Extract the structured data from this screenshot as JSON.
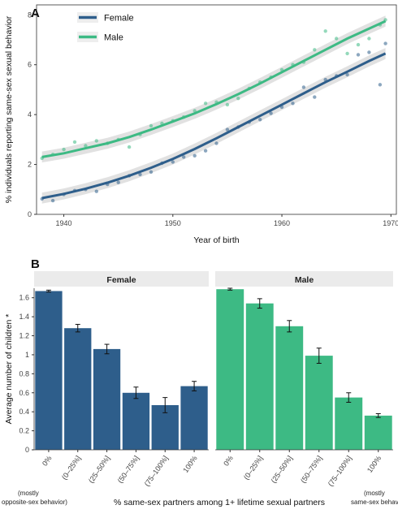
{
  "colors": {
    "female": "#2e5e8b",
    "male": "#3dba84",
    "band": "#d9d9d9",
    "strip": "#ebebeb"
  },
  "panel_a": {
    "label": "A",
    "legend": [
      "Female",
      "Male"
    ],
    "ylabel": "% individuals reporting same-sex sexual behavior",
    "xlabel": "Year of birth",
    "xticks": [
      "1940",
      "1950",
      "1960",
      "1970"
    ],
    "yticks": [
      "0",
      "2",
      "4",
      "6",
      "8"
    ]
  },
  "panel_b": {
    "label": "B",
    "facets": [
      "Female",
      "Male"
    ],
    "ylabel": "Average number of children *",
    "xlabel": "% same-sex partners among 1+ lifetime sexual partners",
    "note_left": [
      "(mostly",
      "opposite-sex behavior)"
    ],
    "note_right": [
      "(mostly",
      "same-sex behavior)"
    ],
    "yticks": [
      "0",
      "0.2",
      "0.4",
      "0.6",
      "0.8",
      "1",
      "1.2",
      "1.4",
      "1.6"
    ],
    "categories": [
      "0%",
      "(0–25%]",
      "(25–50%]",
      "(50–75%]",
      "(75–100%]",
      "100%"
    ]
  },
  "chart_data": [
    {
      "type": "scatter",
      "xlim": [
        1937.5,
        1970.5
      ],
      "ylim": [
        0,
        8.4
      ],
      "xlabel": "Year of birth",
      "ylabel": "% individuals reporting same-sex sexual behavior",
      "legend_position": "top-left",
      "grid": false,
      "series": [
        {
          "name": "Female",
          "points": [
            [
              1938,
              0.62
            ],
            [
              1939,
              0.55
            ],
            [
              1940,
              0.8
            ],
            [
              1941,
              0.95
            ],
            [
              1942,
              1.0
            ],
            [
              1943,
              0.92
            ],
            [
              1944,
              1.2
            ],
            [
              1945,
              1.28
            ],
            [
              1946,
              1.55
            ],
            [
              1947,
              1.6
            ],
            [
              1948,
              1.7
            ],
            [
              1949,
              2.05
            ],
            [
              1950,
              2.1
            ],
            [
              1951,
              2.3
            ],
            [
              1952,
              2.35
            ],
            [
              1953,
              2.55
            ],
            [
              1954,
              2.85
            ],
            [
              1955,
              3.4
            ],
            [
              1956,
              3.5
            ],
            [
              1957,
              3.7
            ],
            [
              1958,
              3.8
            ],
            [
              1959,
              4.05
            ],
            [
              1960,
              4.3
            ],
            [
              1961,
              4.45
            ],
            [
              1962,
              5.1
            ],
            [
              1963,
              4.7
            ],
            [
              1964,
              5.4
            ],
            [
              1965,
              5.55
            ],
            [
              1966,
              5.6
            ],
            [
              1967,
              6.4
            ],
            [
              1968,
              6.5
            ],
            [
              1969,
              5.2
            ],
            [
              1969.5,
              6.85
            ]
          ],
          "fit": [
            [
              1938,
              0.65
            ],
            [
              1940,
              0.82
            ],
            [
              1942,
              1.03
            ],
            [
              1944,
              1.27
            ],
            [
              1946,
              1.55
            ],
            [
              1948,
              1.87
            ],
            [
              1950,
              2.22
            ],
            [
              1952,
              2.62
            ],
            [
              1954,
              3.05
            ],
            [
              1956,
              3.5
            ],
            [
              1958,
              3.95
            ],
            [
              1960,
              4.4
            ],
            [
              1962,
              4.85
            ],
            [
              1964,
              5.3
            ],
            [
              1966,
              5.72
            ],
            [
              1968,
              6.15
            ],
            [
              1969.5,
              6.45
            ]
          ]
        },
        {
          "name": "Male",
          "points": [
            [
              1938,
              2.25
            ],
            [
              1939,
              2.4
            ],
            [
              1940,
              2.6
            ],
            [
              1941,
              2.9
            ],
            [
              1942,
              2.75
            ],
            [
              1943,
              2.95
            ],
            [
              1944,
              2.85
            ],
            [
              1945,
              3.0
            ],
            [
              1946,
              2.7
            ],
            [
              1947,
              3.2
            ],
            [
              1948,
              3.55
            ],
            [
              1949,
              3.65
            ],
            [
              1950,
              3.75
            ],
            [
              1951,
              3.9
            ],
            [
              1952,
              4.15
            ],
            [
              1953,
              4.45
            ],
            [
              1954,
              4.5
            ],
            [
              1955,
              4.4
            ],
            [
              1956,
              4.65
            ],
            [
              1957,
              5.05
            ],
            [
              1958,
              5.3
            ],
            [
              1959,
              5.5
            ],
            [
              1960,
              5.8
            ],
            [
              1961,
              6.0
            ],
            [
              1962,
              6.1
            ],
            [
              1963,
              6.6
            ],
            [
              1964,
              7.35
            ],
            [
              1965,
              7.05
            ],
            [
              1966,
              6.45
            ],
            [
              1967,
              6.8
            ],
            [
              1968,
              7.05
            ],
            [
              1969,
              7.6
            ],
            [
              1969.5,
              7.8
            ]
          ],
          "fit": [
            [
              1938,
              2.3
            ],
            [
              1940,
              2.45
            ],
            [
              1942,
              2.65
            ],
            [
              1944,
              2.85
            ],
            [
              1946,
              3.1
            ],
            [
              1948,
              3.4
            ],
            [
              1950,
              3.72
            ],
            [
              1952,
              4.05
            ],
            [
              1954,
              4.42
            ],
            [
              1956,
              4.82
            ],
            [
              1958,
              5.25
            ],
            [
              1960,
              5.7
            ],
            [
              1962,
              6.15
            ],
            [
              1964,
              6.6
            ],
            [
              1966,
              7.05
            ],
            [
              1968,
              7.45
            ],
            [
              1969.5,
              7.75
            ]
          ]
        }
      ]
    },
    {
      "type": "bar",
      "ylabel": "Average number of children *",
      "xlabel": "% same-sex partners among 1+ lifetime sexual partners",
      "ylim": [
        0,
        1.7
      ],
      "categories": [
        "0%",
        "(0–25%]",
        "(25–50%]",
        "(50–75%]",
        "(75–100%]",
        "100%"
      ],
      "series": [
        {
          "name": "Female",
          "values": [
            1.67,
            1.28,
            1.06,
            0.6,
            0.47,
            0.67
          ],
          "errors": [
            0.01,
            0.04,
            0.05,
            0.06,
            0.08,
            0.05
          ]
        },
        {
          "name": "Male",
          "values": [
            1.69,
            1.54,
            1.3,
            0.99,
            0.55,
            0.36
          ],
          "errors": [
            0.01,
            0.05,
            0.06,
            0.08,
            0.05,
            0.02
          ]
        }
      ]
    }
  ]
}
